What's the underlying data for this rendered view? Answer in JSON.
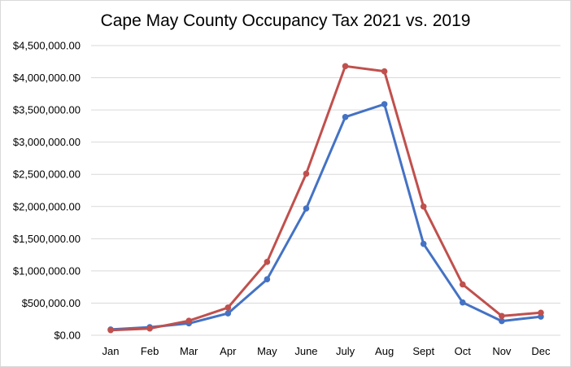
{
  "chart_data": {
    "type": "line",
    "title": "Cape May County Occupancy Tax 2021 vs. 2019",
    "xlabel": "",
    "ylabel": "",
    "ylim": [
      0,
      4500000
    ],
    "ytick_step": 500000,
    "ytick_labels": [
      "$0.00",
      "$500,000.00",
      "$1,000,000.00",
      "$1,500,000.00",
      "$2,000,000.00",
      "$2,500,000.00",
      "$3,000,000.00",
      "$3,500,000.00",
      "$4,000,000.00",
      "$4,500,000.00"
    ],
    "grid": true,
    "legend": "none",
    "categories": [
      "Jan",
      "Feb",
      "Mar",
      "Apr",
      "May",
      "June",
      "July",
      "Aug",
      "Sept",
      "Oct",
      "Nov",
      "Dec"
    ],
    "series": [
      {
        "name": "Series 1 (blue)",
        "color": "#4472c4",
        "values": [
          90000,
          125000,
          185000,
          340000,
          870000,
          1970000,
          3390000,
          3590000,
          1420000,
          510000,
          220000,
          290000
        ]
      },
      {
        "name": "Series 2 (red)",
        "color": "#c0504d",
        "values": [
          80000,
          105000,
          225000,
          430000,
          1140000,
          2510000,
          4180000,
          4100000,
          2000000,
          790000,
          300000,
          350000
        ]
      }
    ]
  }
}
